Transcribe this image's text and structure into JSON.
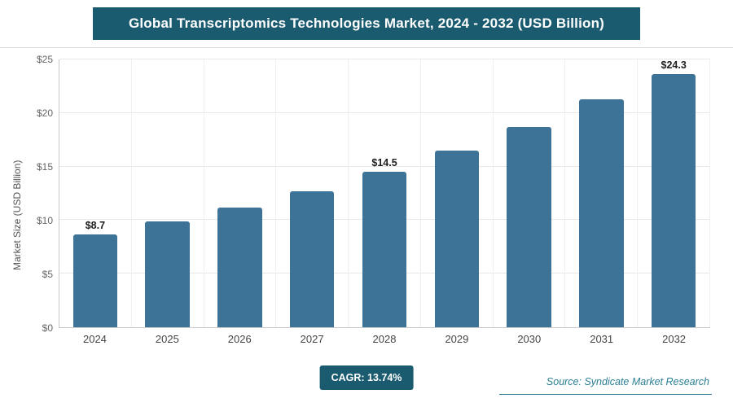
{
  "header": {
    "title": "Global Transcriptomics Technologies Market, 2024 - 2032 (USD Billion)"
  },
  "chart_data": {
    "type": "bar",
    "title": "Global Transcriptomics Technologies Market, 2024 - 2032 (USD Billion)",
    "xlabel": "",
    "ylabel": "Market Size (USD Billion)",
    "ylim": [
      0,
      25
    ],
    "ytick_step": 5,
    "ytick_labels": [
      "$0",
      "$5",
      "$10",
      "$15",
      "$20",
      "$25"
    ],
    "categories": [
      "2024",
      "2025",
      "2026",
      "2027",
      "2028",
      "2029",
      "2030",
      "2031",
      "2032"
    ],
    "values": [
      8.7,
      9.9,
      11.2,
      12.7,
      14.5,
      16.5,
      18.7,
      21.3,
      24.3
    ],
    "data_labels": [
      "$8.7",
      "",
      "",
      "",
      "$14.5",
      "",
      "",
      "",
      "$24.3"
    ],
    "bar_color": "#3d7397",
    "grid": true,
    "legend": "none"
  },
  "footer": {
    "cagr_label": "CAGR: 13.74%",
    "source": "Source: Syndicate Market Research"
  },
  "colors": {
    "accent": "#1a5b70",
    "bar": "#3d7397",
    "source_text": "#2a7f93",
    "gridline": "#e8e8e8"
  }
}
